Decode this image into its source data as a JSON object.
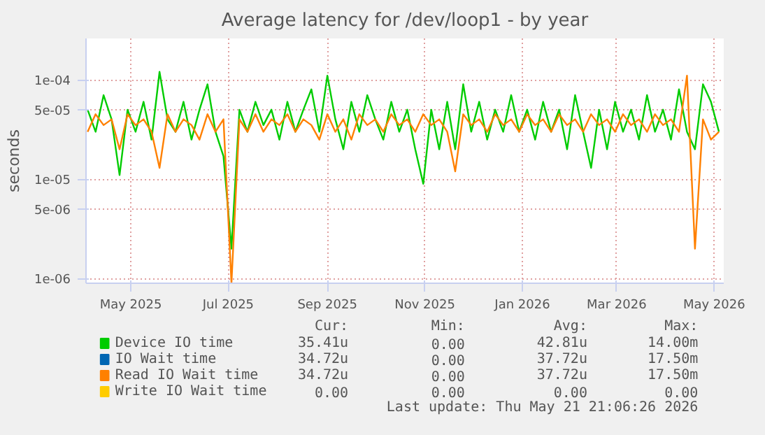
{
  "chart_data": {
    "type": "line",
    "title": "Average latency for /dev/loop1 - by year",
    "ylabel": "seconds",
    "log": "y",
    "grid": true,
    "legend": "bottom",
    "marker": "none",
    "line_style": "solid",
    "xlim": [
      "2025-04-03",
      "2026-05-07"
    ],
    "xticks": [
      {
        "value": "2025-05-01",
        "label": "May 2025"
      },
      {
        "value": "2025-07-01",
        "label": "Jul 2025"
      },
      {
        "value": "2025-09-01",
        "label": "Sep 2025"
      },
      {
        "value": "2025-11-01",
        "label": "Nov 2025"
      },
      {
        "value": "2026-01-01",
        "label": "Jan 2026"
      },
      {
        "value": "2026-03-01",
        "label": "Mar 2026"
      },
      {
        "value": "2026-05-01",
        "label": "May 2026"
      }
    ],
    "ylim": [
      9e-07,
      0.00026
    ],
    "yticks": [
      {
        "value": 1e-06,
        "label": "1e-06"
      },
      {
        "value": 5e-06,
        "label": "5e-06"
      },
      {
        "value": 1e-05,
        "label": "1e-05"
      },
      {
        "value": 5e-05,
        "label": "5e-05"
      },
      {
        "value": 0.0001,
        "label": "1e-04"
      }
    ],
    "x": [
      "2025-04-04",
      "2025-04-09",
      "2025-04-14",
      "2025-04-19",
      "2025-04-24",
      "2025-04-29",
      "2025-05-04",
      "2025-05-09",
      "2025-05-14",
      "2025-05-19",
      "2025-05-24",
      "2025-05-29",
      "2025-06-03",
      "2025-06-08",
      "2025-06-13",
      "2025-06-18",
      "2025-06-23",
      "2025-06-28",
      "2025-07-03",
      "2025-07-08",
      "2025-07-13",
      "2025-07-18",
      "2025-07-23",
      "2025-07-28",
      "2025-08-02",
      "2025-08-07",
      "2025-08-12",
      "2025-08-17",
      "2025-08-22",
      "2025-08-27",
      "2025-09-01",
      "2025-09-06",
      "2025-09-11",
      "2025-09-16",
      "2025-09-21",
      "2025-09-26",
      "2025-10-01",
      "2025-10-06",
      "2025-10-11",
      "2025-10-16",
      "2025-10-21",
      "2025-10-26",
      "2025-10-31",
      "2025-11-05",
      "2025-11-10",
      "2025-11-15",
      "2025-11-20",
      "2025-11-25",
      "2025-11-30",
      "2025-12-05",
      "2025-12-10",
      "2025-12-15",
      "2025-12-20",
      "2025-12-25",
      "2025-12-30",
      "2026-01-04",
      "2026-01-09",
      "2026-01-14",
      "2026-01-19",
      "2026-01-24",
      "2026-01-29",
      "2026-02-03",
      "2026-02-08",
      "2026-02-13",
      "2026-02-18",
      "2026-02-23",
      "2026-02-28",
      "2026-03-05",
      "2026-03-10",
      "2026-03-15",
      "2026-03-20",
      "2026-03-25",
      "2026-03-30",
      "2026-04-04",
      "2026-04-09",
      "2026-04-14",
      "2026-04-19",
      "2026-04-24",
      "2026-04-29",
      "2026-05-04"
    ],
    "series": [
      {
        "name": "Device IO time",
        "color": "#00cc00",
        "values": [
          5e-05,
          3e-05,
          7e-05,
          4e-05,
          1.1e-05,
          5e-05,
          3e-05,
          6e-05,
          2.5e-05,
          0.00012,
          4e-05,
          3e-05,
          6e-05,
          2.5e-05,
          5e-05,
          9e-05,
          3e-05,
          1.7e-05,
          2e-06,
          5e-05,
          3e-05,
          6e-05,
          3.5e-05,
          5e-05,
          2.5e-05,
          6e-05,
          3e-05,
          5e-05,
          8e-05,
          3e-05,
          0.00011,
          4e-05,
          2e-05,
          6e-05,
          3e-05,
          7e-05,
          4e-05,
          2.5e-05,
          6e-05,
          3e-05,
          5e-05,
          2e-05,
          9e-06,
          5e-05,
          2e-05,
          6e-05,
          2e-05,
          9e-05,
          3e-05,
          6e-05,
          2.5e-05,
          5e-05,
          3e-05,
          7e-05,
          3e-05,
          5e-05,
          2.5e-05,
          6e-05,
          3e-05,
          5e-05,
          2e-05,
          7e-05,
          3e-05,
          1.3e-05,
          5e-05,
          2e-05,
          6e-05,
          3e-05,
          5e-05,
          2.5e-05,
          7e-05,
          3e-05,
          5e-05,
          2.5e-05,
          8e-05,
          3e-05,
          2e-05,
          9e-05,
          6e-05,
          3e-05
        ]
      },
      {
        "name": "IO Wait time",
        "color": "#0066b3",
        "values": [
          null,
          null,
          null,
          null,
          null,
          null,
          null,
          null,
          null,
          null,
          null,
          null,
          null,
          null,
          null,
          null,
          null,
          null,
          null,
          null,
          null,
          null,
          null,
          null,
          null,
          null,
          null,
          null,
          null,
          null,
          null,
          null,
          null,
          null,
          null,
          null,
          null,
          null,
          null,
          null,
          null,
          null,
          null,
          null,
          null,
          null,
          null,
          null,
          null,
          null,
          null,
          null,
          null,
          null,
          null,
          null,
          null,
          null,
          null,
          null,
          null,
          null,
          null,
          null,
          null,
          null,
          null,
          null,
          null,
          null,
          null,
          null,
          null,
          null,
          null,
          null,
          null,
          null,
          null,
          null
        ]
      },
      {
        "name": "Read IO Wait time",
        "color": "#ff8000",
        "values": [
          3e-05,
          4.5e-05,
          3.5e-05,
          4e-05,
          2e-05,
          4.5e-05,
          3.5e-05,
          4e-05,
          3e-05,
          1.3e-05,
          4.5e-05,
          3e-05,
          4e-05,
          3.5e-05,
          2.5e-05,
          4.5e-05,
          3e-05,
          4e-05,
          9e-07,
          4e-05,
          3e-05,
          4.5e-05,
          3e-05,
          4e-05,
          3.5e-05,
          4.5e-05,
          3e-05,
          4e-05,
          3.5e-05,
          2.5e-05,
          4.5e-05,
          3e-05,
          4e-05,
          2.5e-05,
          4.5e-05,
          3.5e-05,
          4e-05,
          3e-05,
          4.5e-05,
          3.5e-05,
          4e-05,
          3e-05,
          4.5e-05,
          3.5e-05,
          4e-05,
          3e-05,
          1.2e-05,
          4.5e-05,
          3.5e-05,
          4e-05,
          3e-05,
          4.5e-05,
          3.5e-05,
          4e-05,
          3e-05,
          4.5e-05,
          3.5e-05,
          4e-05,
          3e-05,
          4.5e-05,
          3.5e-05,
          4e-05,
          3e-05,
          4.5e-05,
          3.5e-05,
          4e-05,
          3e-05,
          4.5e-05,
          3.5e-05,
          4e-05,
          3e-05,
          4.5e-05,
          3.5e-05,
          4e-05,
          3e-05,
          0.00011,
          2e-06,
          4e-05,
          2.5e-05,
          3e-05
        ]
      },
      {
        "name": "Write IO Wait time",
        "color": "#ffcc00",
        "values": [
          null,
          null,
          null,
          null,
          null,
          null,
          null,
          null,
          null,
          null,
          null,
          null,
          null,
          null,
          null,
          null,
          null,
          null,
          null,
          null,
          null,
          null,
          null,
          null,
          null,
          null,
          null,
          null,
          null,
          null,
          null,
          null,
          null,
          null,
          null,
          null,
          null,
          null,
          null,
          null,
          null,
          null,
          null,
          null,
          null,
          null,
          null,
          null,
          null,
          null,
          null,
          null,
          null,
          null,
          null,
          null,
          null,
          null,
          null,
          null,
          null,
          null,
          null,
          null,
          null,
          null,
          null,
          null,
          null,
          null,
          null,
          null,
          null,
          null,
          null,
          null,
          null,
          null,
          null,
          null
        ]
      }
    ],
    "annotations": [
      "Cur:",
      "Min:",
      "Avg:",
      "Max:",
      "35.41u",
      "0.00",
      "42.81u",
      "14.00m",
      "34.72u",
      "0.00",
      "37.72u",
      "17.50m",
      "34.72u",
      "0.00",
      "37.72u",
      "17.50m",
      "0.00",
      "0.00",
      "0.00",
      "0.00",
      "Last update: Thu May 21 21:06:26 2026"
    ]
  }
}
